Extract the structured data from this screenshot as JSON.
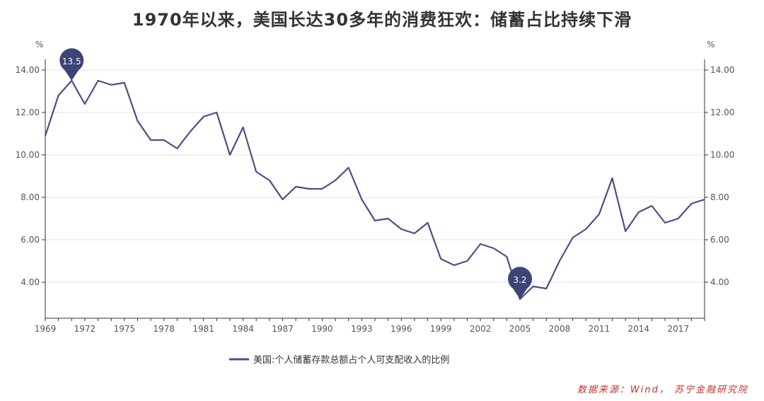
{
  "title": "1970年以来，美国长达30多年的消费狂欢：储蓄占比持续下滑",
  "source_note": "数据来源：Wind， 苏宁金融研究院",
  "colors": {
    "line": "#4a4f86",
    "pin": "#3d4478",
    "grid": "#e3e3e3",
    "axis": "#333333",
    "source": "#c0302c"
  },
  "chart_data": {
    "type": "line",
    "title": "1970年以来，美国长达30多年的消费狂欢：储蓄占比持续下滑",
    "ylabel_left": "%",
    "ylabel_right": "%",
    "x_tick_labels": [
      "1969",
      "1972",
      "1975",
      "1978",
      "1981",
      "1984",
      "1987",
      "1990",
      "1993",
      "1996",
      "1999",
      "2002",
      "2005",
      "2008",
      "2011",
      "2014",
      "2017"
    ],
    "y_tick_labels": [
      "4.00",
      "6.00",
      "8.00",
      "10.00",
      "12.00",
      "14.00"
    ],
    "ylim": [
      2.3,
      14.5
    ],
    "xlim": [
      1969,
      2019
    ],
    "grid": "horizontal",
    "legend_position": "bottom",
    "series": [
      {
        "name": "美国:个人储蓄存款总额占个人可支配收入的比例",
        "x": [
          1969,
          1970,
          1971,
          1972,
          1973,
          1974,
          1975,
          1976,
          1977,
          1978,
          1979,
          1980,
          1981,
          1982,
          1983,
          1984,
          1985,
          1986,
          1987,
          1988,
          1989,
          1990,
          1991,
          1992,
          1993,
          1994,
          1995,
          1996,
          1997,
          1998,
          1999,
          2000,
          2001,
          2002,
          2003,
          2004,
          2005,
          2006,
          2007,
          2008,
          2009,
          2010,
          2011,
          2012,
          2013,
          2014,
          2015,
          2016,
          2017,
          2018,
          2019
        ],
        "values": [
          10.9,
          12.8,
          13.5,
          12.4,
          13.5,
          13.3,
          13.4,
          11.6,
          10.7,
          10.7,
          10.3,
          11.1,
          11.8,
          12.0,
          10.0,
          11.3,
          9.2,
          8.8,
          7.9,
          8.5,
          8.4,
          8.4,
          8.8,
          9.4,
          7.9,
          6.9,
          7.0,
          6.5,
          6.3,
          6.8,
          5.1,
          4.8,
          5.0,
          5.8,
          5.6,
          5.2,
          3.2,
          3.8,
          3.7,
          5.0,
          6.1,
          6.5,
          7.2,
          8.9,
          6.4,
          7.3,
          7.6,
          6.8,
          7.0,
          7.7,
          7.9
        ]
      }
    ],
    "annotations": [
      {
        "label": "13.5",
        "x": 1971,
        "y": 13.5
      },
      {
        "label": "3.2",
        "x": 2005,
        "y": 3.2
      }
    ]
  }
}
